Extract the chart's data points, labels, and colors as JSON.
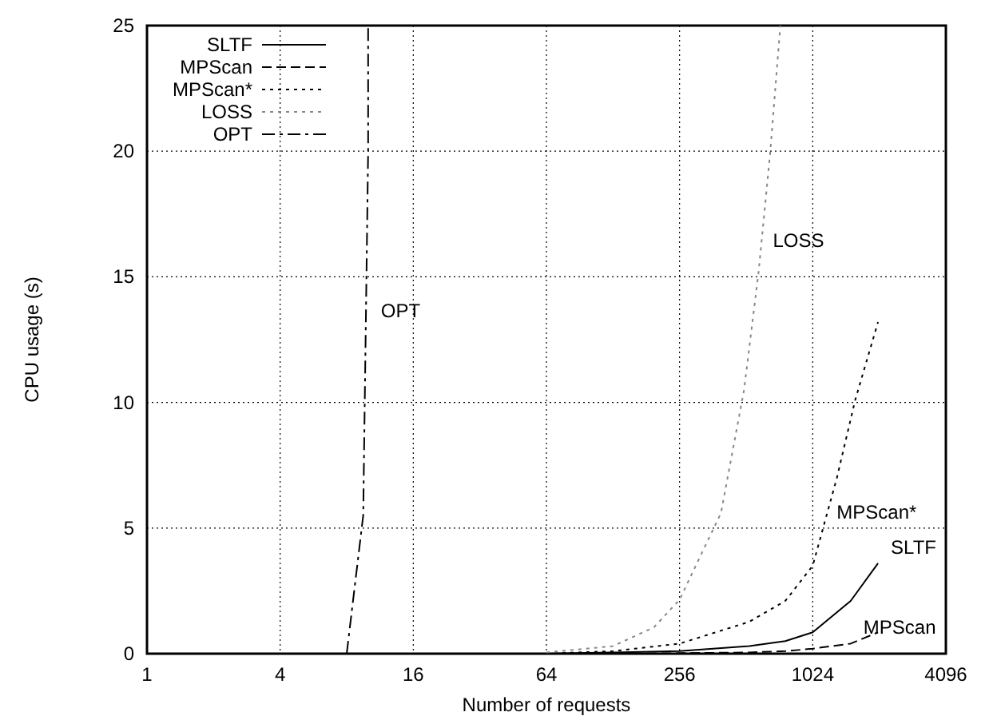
{
  "chart_data": {
    "type": "line",
    "xlabel": "Number of requests",
    "ylabel": "CPU usage (s)",
    "log": "x",
    "xlim": [
      1,
      4096
    ],
    "xticks": [
      1,
      4,
      16,
      64,
      256,
      1024,
      4096
    ],
    "ylim": [
      0,
      25
    ],
    "yticks": [
      0,
      5,
      10,
      15,
      20,
      25
    ],
    "grid": true,
    "legend": "top left",
    "marker": "none",
    "series": [
      {
        "name": "SLTF",
        "color": "#000000",
        "line_style": "solid",
        "x": [
          64,
          128,
          256,
          529,
          770,
          1024,
          1520,
          2021
        ],
        "values": [
          0,
          0.05,
          0.1,
          0.3,
          0.5,
          0.85,
          2.1,
          3.6
        ]
      },
      {
        "name": "MPScan",
        "color": "#000000",
        "line_style": "dashed",
        "x": [
          64,
          128,
          256,
          529,
          770,
          1024,
          1520,
          2021
        ],
        "values": [
          0,
          0,
          0.02,
          0.05,
          0.1,
          0.2,
          0.4,
          0.85
        ]
      },
      {
        "name": "MPScan*",
        "color": "#000000",
        "line_style": "dotted",
        "x": [
          64,
          128,
          256,
          529,
          770,
          1024,
          1317,
          1594,
          2021
        ],
        "values": [
          0,
          0.1,
          0.4,
          1.27,
          2.1,
          3.5,
          7,
          10.1,
          13.2
        ]
      },
      {
        "name": "LOSS",
        "color": "#888888",
        "line_style": "dotted",
        "x": [
          64,
          128,
          196,
          256,
          394,
          501,
          583,
          657,
          731
        ],
        "values": [
          0.05,
          0.3,
          1.05,
          2.15,
          5.6,
          10.5,
          15.2,
          19.9,
          25
        ]
      },
      {
        "name": "OPT",
        "color": "#000000",
        "line_style": "dashdot",
        "x": [
          8,
          9.5,
          10,
          10
        ],
        "values": [
          0,
          5.5,
          20,
          25
        ]
      }
    ],
    "annotations": [
      {
        "text": "OPT",
        "x": 10,
        "y": 13
      },
      {
        "text": "LOSS",
        "x": 592,
        "y": 15.8
      },
      {
        "text": "MPScan*",
        "x": 1150,
        "y": 5
      },
      {
        "text": "SLTF",
        "x": 2021,
        "y": 3.6
      },
      {
        "text": "MPScan",
        "x": 1520,
        "y": 0.4
      }
    ]
  }
}
